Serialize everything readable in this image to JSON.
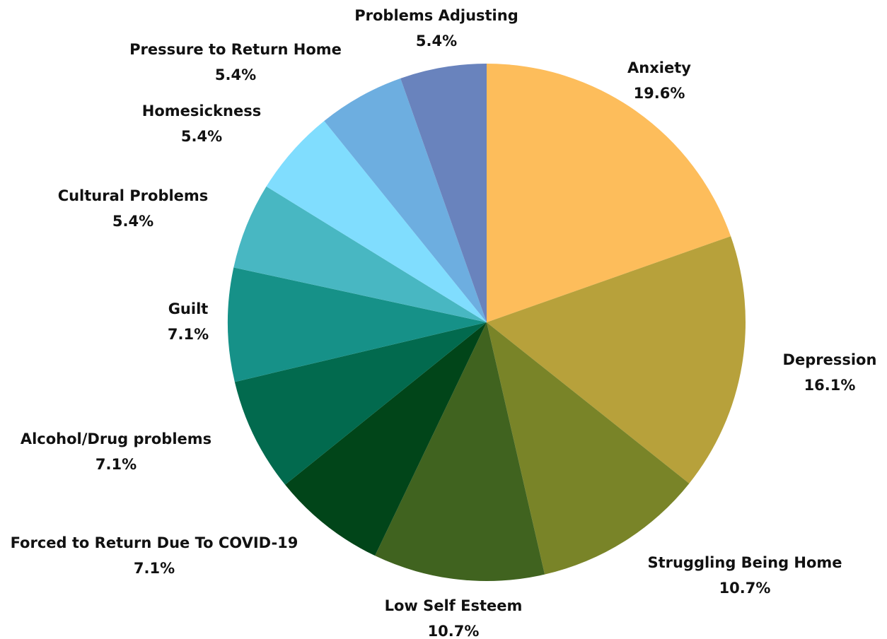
{
  "chart_data": {
    "type": "pie",
    "start_angle_deg": 0,
    "direction": "clockwise",
    "slices": [
      {
        "label": "Anxiety",
        "value_label": "19.6%",
        "value": 19.6,
        "color": "#FDBD5B"
      },
      {
        "label": "Depression",
        "value_label": "16.1%",
        "value": 16.1,
        "color": "#B7A13B"
      },
      {
        "label": "Struggling Being Home",
        "value_label": "10.7%",
        "value": 10.7,
        "color": "#798428"
      },
      {
        "label": "Low Self Esteem",
        "value_label": "10.7%",
        "value": 10.7,
        "color": "#40631F"
      },
      {
        "label": "Forced to Return Due To COVID-19",
        "value_label": "7.1%",
        "value": 7.1,
        "color": "#014519"
      },
      {
        "label": "Alcohol/Drug problems",
        "value_label": "7.1%",
        "value": 7.1,
        "color": "#026A4E"
      },
      {
        "label": "Guilt",
        "value_label": "7.1%",
        "value": 7.1,
        "color": "#169188"
      },
      {
        "label": "Cultural Problems",
        "value_label": "5.4%",
        "value": 5.4,
        "color": "#48B7C2"
      },
      {
        "label": "Homesickness",
        "value_label": "5.4%",
        "value": 5.4,
        "color": "#80DDFE"
      },
      {
        "label": "Pressure to Return Home",
        "value_label": "5.4%",
        "value": 5.4,
        "color": "#6DAEE0"
      },
      {
        "label": "Problems Adjusting",
        "value_label": "5.4%",
        "value": 5.4,
        "color": "#6983BD"
      }
    ]
  }
}
